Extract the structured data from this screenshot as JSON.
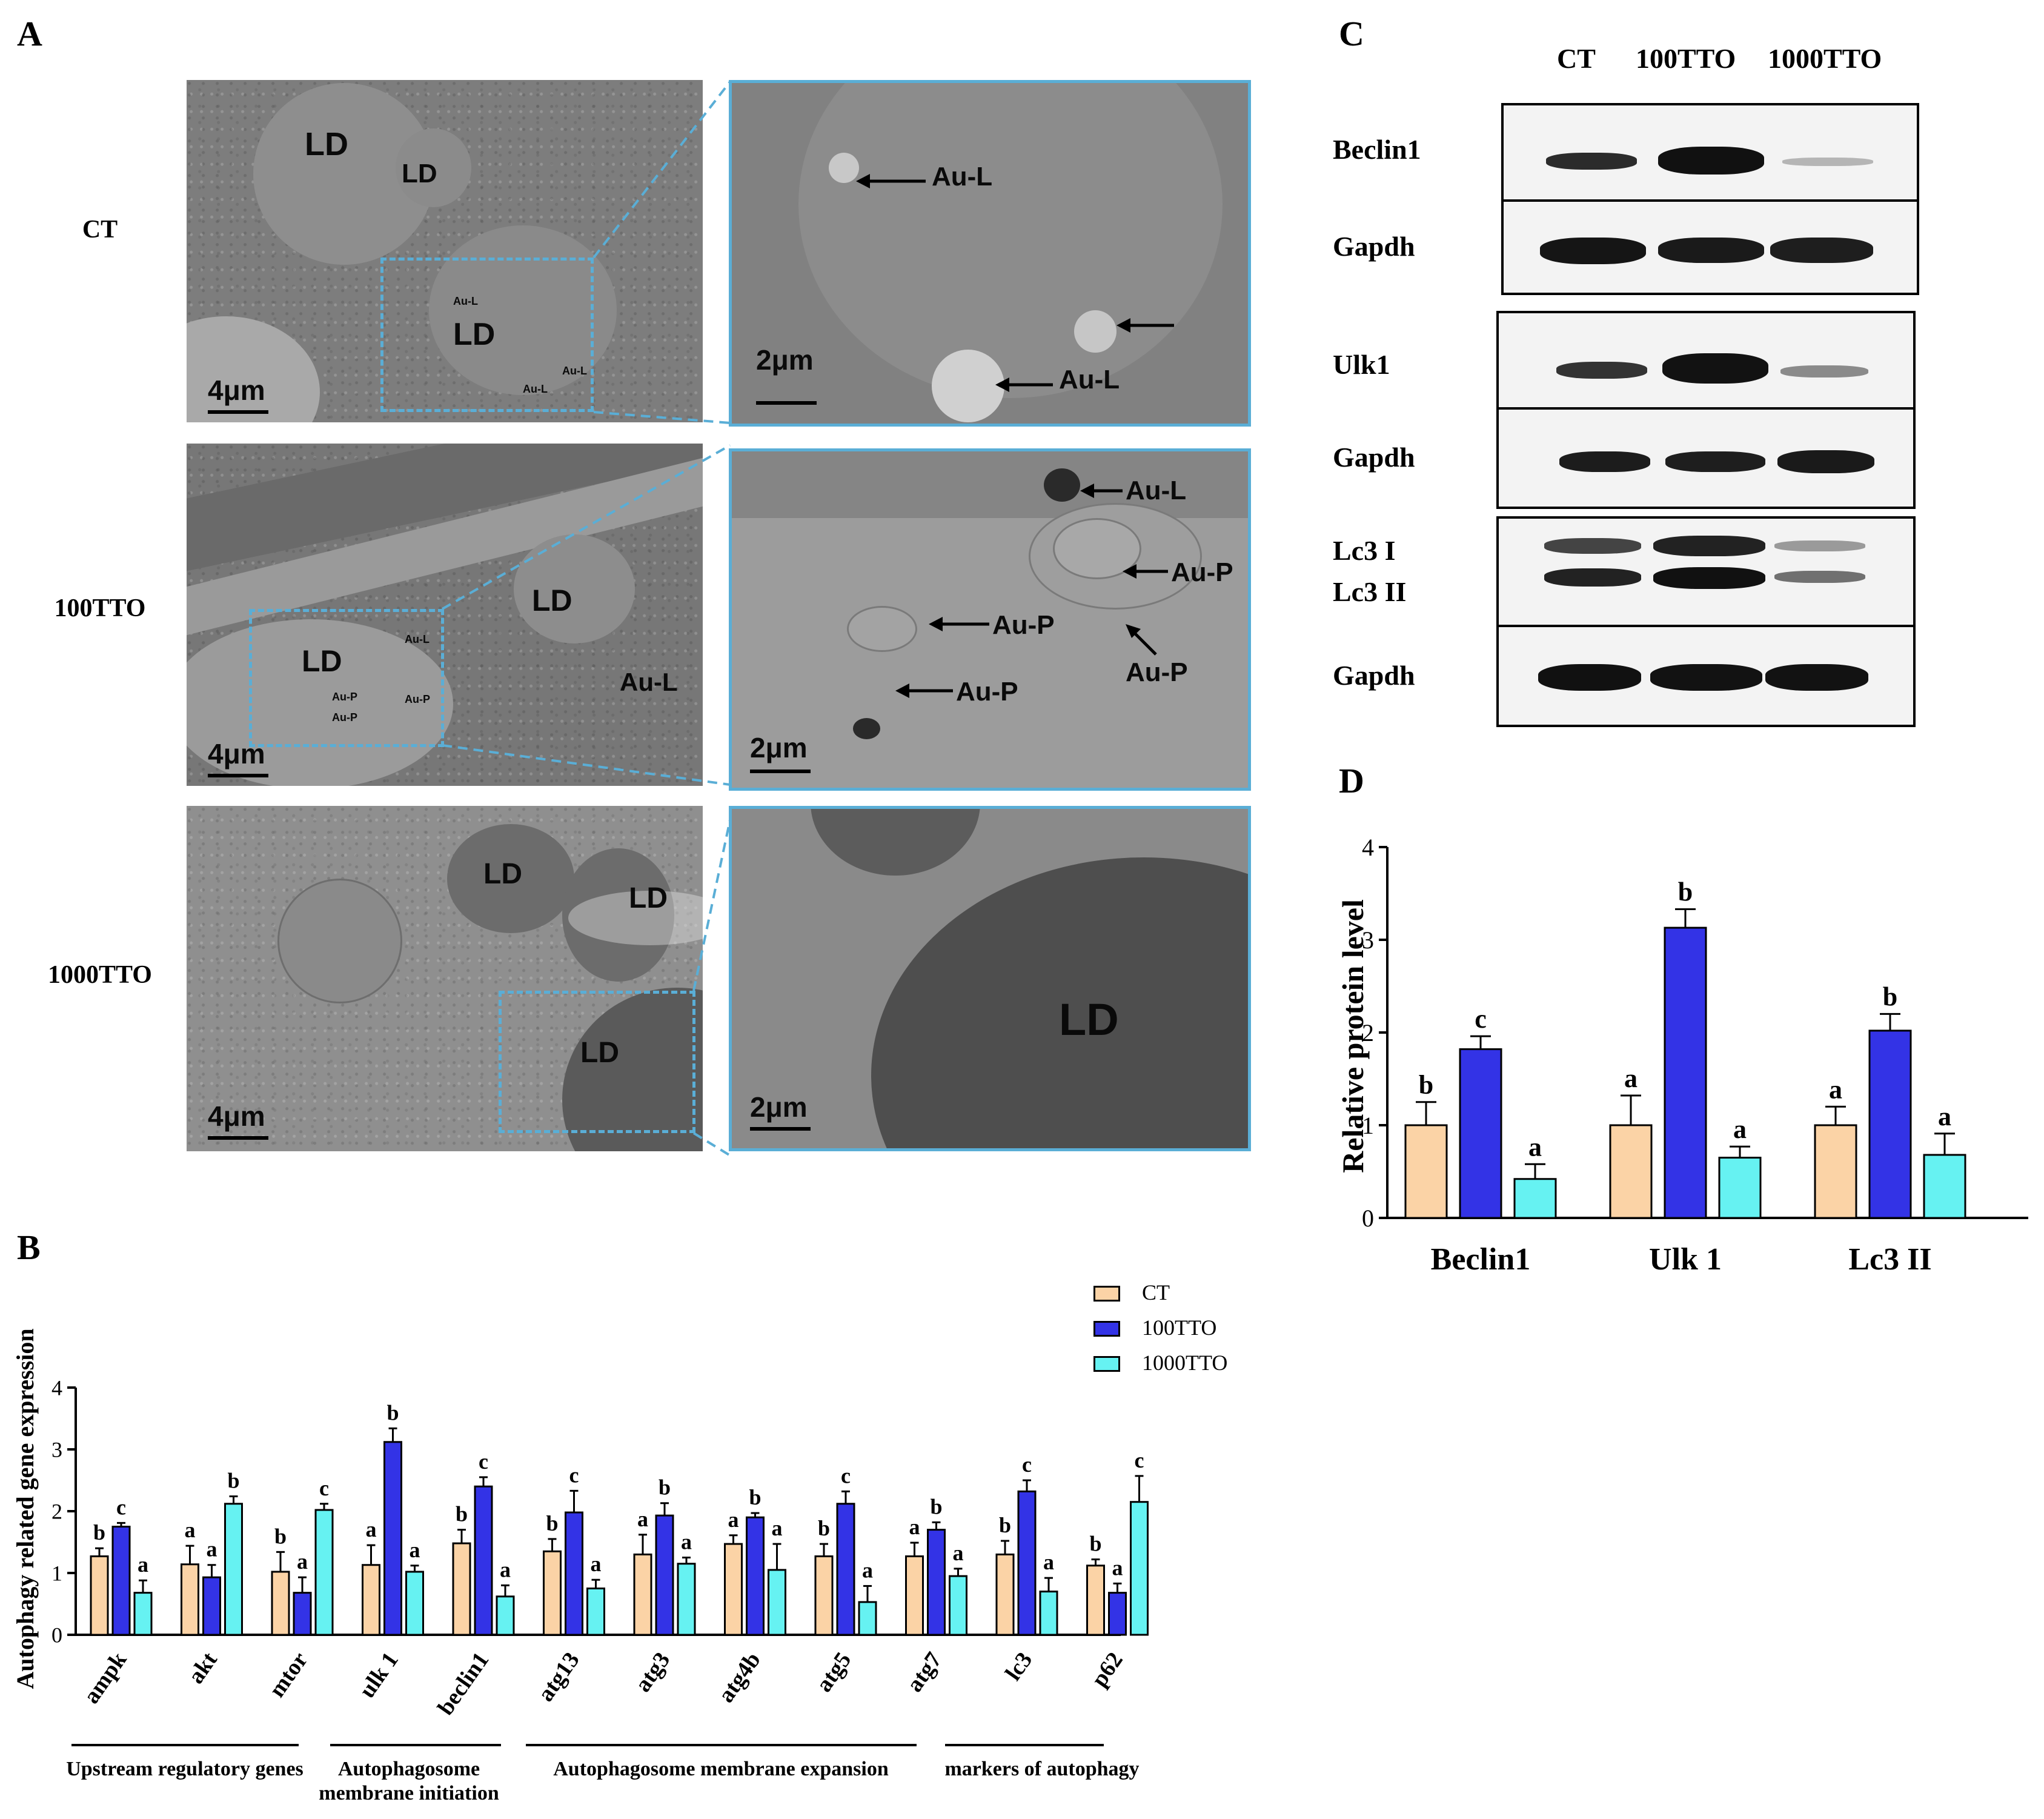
{
  "panel_letters": {
    "A": "A",
    "B": "B",
    "C": "C",
    "D": "D"
  },
  "panel_a": {
    "row_labels": [
      "CT",
      "100TTO",
      "1000TTO"
    ],
    "rows": [
      {
        "overview_labels": [
          "LD",
          "LD",
          "LD",
          "Au-L",
          "Au-L",
          "Au-L"
        ],
        "overview_scale": "4μm",
        "zoom_labels": [
          "Au-L",
          "Au-L"
        ],
        "zoom_scale": "2μm"
      },
      {
        "overview_labels": [
          "LD",
          "LD",
          "Au-L",
          "Au-L",
          "Au-P",
          "Au-P",
          "Au-P"
        ],
        "overview_scale": "4μm",
        "zoom_labels": [
          "Au-L",
          "Au-P",
          "Au-P",
          "Au-P",
          "Au-P"
        ],
        "zoom_scale": "2μm"
      },
      {
        "overview_labels": [
          "LD",
          "LD",
          "LD"
        ],
        "overview_scale": "4μm",
        "zoom_labels": [
          "LD"
        ],
        "zoom_scale": "2μm"
      }
    ]
  },
  "panel_c": {
    "columns": [
      "CT",
      "100TTO",
      "1000TTO"
    ],
    "blot_labels": [
      "Beclin1",
      "Gapdh",
      "Ulk1",
      "Gapdh",
      "Lc3 I",
      "Lc3 II",
      "Gapdh"
    ]
  },
  "colors": {
    "CT": "#fbd3a6",
    "100TTO": "#3333e6",
    "1000TTO": "#66f2f2",
    "frame": "#5aaed6"
  },
  "chart_data": [
    {
      "id": "B",
      "type": "bar",
      "ylabel": "Autophagy related gene expression",
      "ylim": [
        0,
        4
      ],
      "yticks": [
        "0",
        "1",
        "2",
        "3",
        "4"
      ],
      "categories": [
        "ampk",
        "akt",
        "mtor",
        "ulk 1",
        "beclin1",
        "atg13",
        "atg3",
        "atg4b",
        "atg5",
        "atg7",
        "lc3",
        "p62"
      ],
      "series": [
        {
          "name": "CT",
          "values": [
            1.27,
            1.14,
            1.02,
            1.13,
            1.48,
            1.35,
            1.3,
            1.47,
            1.27,
            1.27,
            1.3,
            1.12
          ],
          "errors": [
            0.13,
            0.3,
            0.32,
            0.32,
            0.22,
            0.2,
            0.32,
            0.14,
            0.2,
            0.22,
            0.22,
            0.1
          ],
          "letters": [
            "b",
            "a",
            "b",
            "a",
            "b",
            "b",
            "a",
            "a",
            "b",
            "a",
            "b",
            "b"
          ]
        },
        {
          "name": "100TTO",
          "values": [
            1.75,
            0.93,
            0.68,
            3.12,
            2.4,
            1.98,
            1.93,
            1.9,
            2.12,
            1.7,
            2.32,
            0.68
          ],
          "errors": [
            0.06,
            0.2,
            0.25,
            0.22,
            0.15,
            0.35,
            0.2,
            0.07,
            0.2,
            0.12,
            0.18,
            0.15
          ],
          "letters": [
            "c",
            "a",
            "a",
            "b",
            "c",
            "c",
            "b",
            "b",
            "c",
            "b",
            "c",
            "a"
          ]
        },
        {
          "name": "1000TTO",
          "values": [
            0.68,
            2.12,
            2.02,
            1.02,
            0.62,
            0.75,
            1.15,
            1.05,
            0.53,
            0.95,
            0.7,
            2.15
          ],
          "errors": [
            0.2,
            0.12,
            0.1,
            0.1,
            0.18,
            0.14,
            0.1,
            0.42,
            0.26,
            0.12,
            0.22,
            0.42
          ],
          "letters": [
            "a",
            "b",
            "c",
            "a",
            "a",
            "a",
            "a",
            "a",
            "a",
            "a",
            "a",
            "c"
          ]
        }
      ],
      "legend": [
        "CT",
        "100TTO",
        "1000TTO"
      ],
      "legend_position": "top-right",
      "groups": [
        {
          "label": "Upstream regulatory genes",
          "categories": [
            "ampk",
            "akt",
            "mtor"
          ]
        },
        {
          "label": "Autophagosome membrane initiation",
          "categories": [
            "ulk 1",
            "beclin1"
          ]
        },
        {
          "label": "Autophagosome membrane expansion",
          "categories": [
            "atg13",
            "atg3",
            "atg4b",
            "atg5",
            "atg7"
          ]
        },
        {
          "label": "markers of autophagy",
          "categories": [
            "lc3",
            "p62"
          ]
        }
      ]
    },
    {
      "id": "D",
      "type": "bar",
      "ylabel": "Relative  protein level",
      "ylim": [
        0,
        4
      ],
      "yticks": [
        "0",
        "1",
        "2",
        "3",
        "4"
      ],
      "categories": [
        "Beclin1",
        "Ulk 1",
        "Lc3 II"
      ],
      "series": [
        {
          "name": "CT",
          "values": [
            1.0,
            1.0,
            1.0
          ],
          "errors": [
            0.25,
            0.32,
            0.2
          ],
          "letters": [
            "b",
            "a",
            "a"
          ]
        },
        {
          "name": "100TTO",
          "values": [
            1.82,
            3.13,
            2.02
          ],
          "errors": [
            0.14,
            0.2,
            0.18
          ],
          "letters": [
            "c",
            "b",
            "b"
          ]
        },
        {
          "name": "1000TTO",
          "values": [
            0.42,
            0.65,
            0.68
          ],
          "errors": [
            0.16,
            0.12,
            0.23
          ],
          "letters": [
            "a",
            "a",
            "a"
          ]
        }
      ]
    }
  ]
}
